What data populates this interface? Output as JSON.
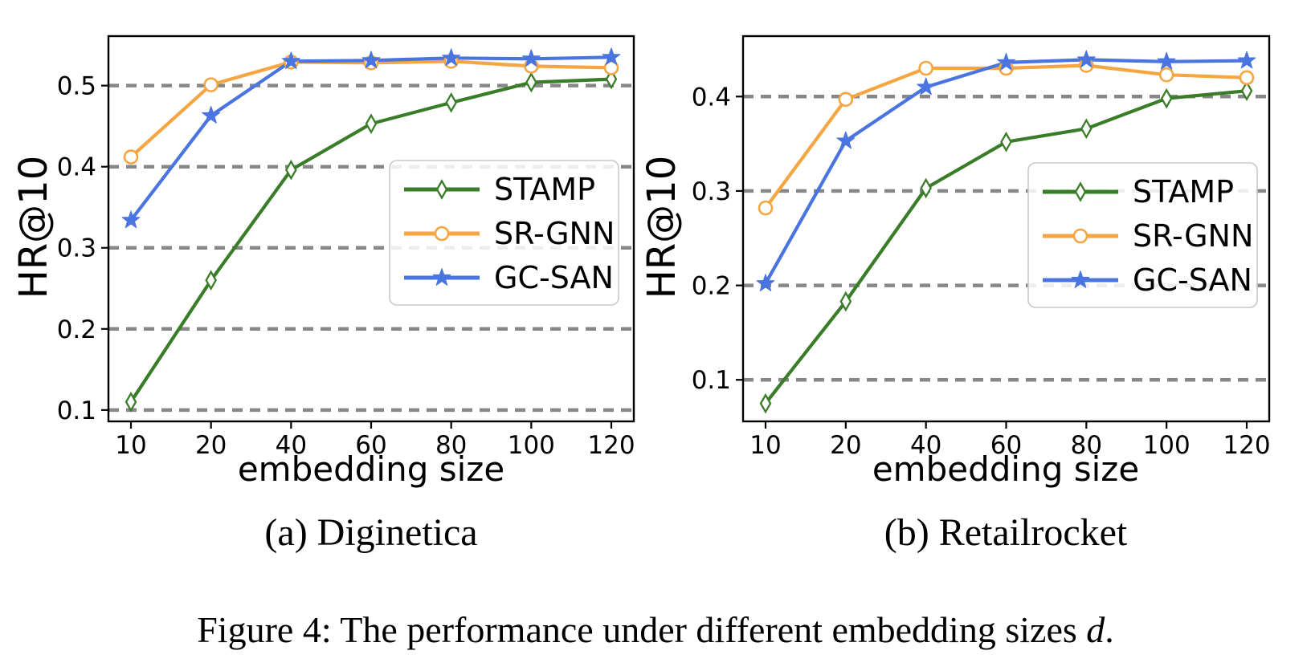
{
  "figure": {
    "caption": {
      "prefix": "Figure 4: The performance under different embedding sizes ",
      "variable": "d",
      "suffix": "."
    }
  },
  "colors": {
    "grid": "#878787",
    "axis": "#000000",
    "stamp_green": "#3a7d28",
    "srgnn_orange": "#f5a642",
    "gcsan_blue": "#4a74e0"
  },
  "chart_data": [
    {
      "type": "line",
      "title": "(a) Diginetica",
      "xlabel": "embedding size",
      "ylabel": "HR@10",
      "x": [
        10,
        20,
        40,
        60,
        80,
        100,
        120
      ],
      "yticks": [
        0.1,
        0.2,
        0.3,
        0.4,
        0.5
      ],
      "ylim": [
        0.086,
        0.561
      ],
      "grid": "horizontal dashed",
      "legend_position": "center right",
      "series": [
        {
          "name": "STAMP",
          "marker": "diamond",
          "color": "#3a7d28",
          "values": [
            0.11,
            0.26,
            0.396,
            0.453,
            0.479,
            0.504,
            0.508
          ]
        },
        {
          "name": "SR-GNN",
          "marker": "circle",
          "color": "#f5a642",
          "values": [
            0.412,
            0.501,
            0.529,
            0.528,
            0.53,
            0.524,
            0.522
          ]
        },
        {
          "name": "GC-SAN",
          "marker": "star",
          "color": "#4a74e0",
          "values": [
            0.334,
            0.463,
            0.53,
            0.531,
            0.534,
            0.533,
            0.535
          ]
        }
      ]
    },
    {
      "type": "line",
      "title": "(b) Retailrocket",
      "xlabel": "embedding size",
      "ylabel": "HR@10",
      "x": [
        10,
        20,
        40,
        60,
        80,
        100,
        120
      ],
      "yticks": [
        0.1,
        0.2,
        0.3,
        0.4
      ],
      "ylim": [
        0.056,
        0.464
      ],
      "grid": "horizontal dashed",
      "legend_position": "center right",
      "series": [
        {
          "name": "STAMP",
          "marker": "diamond",
          "color": "#3a7d28",
          "values": [
            0.075,
            0.183,
            0.303,
            0.352,
            0.366,
            0.398,
            0.406
          ]
        },
        {
          "name": "SR-GNN",
          "marker": "circle",
          "color": "#f5a642",
          "values": [
            0.282,
            0.397,
            0.43,
            0.43,
            0.433,
            0.423,
            0.42
          ]
        },
        {
          "name": "GC-SAN",
          "marker": "star",
          "color": "#4a74e0",
          "values": [
            0.202,
            0.353,
            0.41,
            0.436,
            0.439,
            0.437,
            0.438
          ]
        }
      ]
    }
  ]
}
